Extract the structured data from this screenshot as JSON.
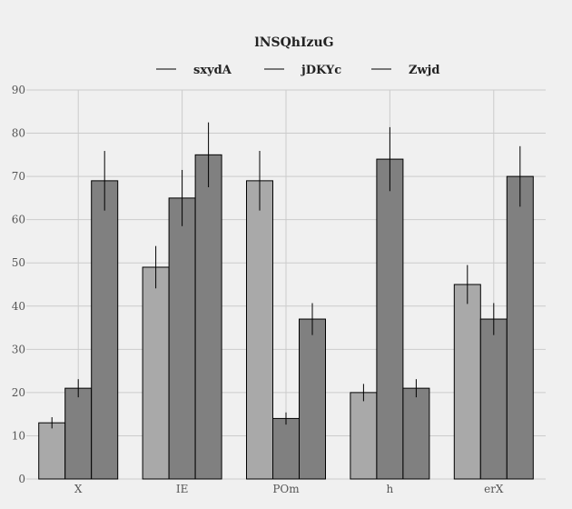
{
  "chart_data": {
    "type": "bar",
    "title": "lNSQhIzuG",
    "xlabel": "",
    "ylabel": "",
    "categories": [
      "X",
      "IE",
      "POm",
      "h",
      "erX"
    ],
    "ylim": [
      0,
      90
    ],
    "yticks": [
      0,
      10,
      20,
      30,
      40,
      50,
      60,
      70,
      80,
      90
    ],
    "grid": true,
    "legend": "top-center",
    "series": [
      {
        "name": "sxydA",
        "color": "#a9a9a9",
        "values": [
          13,
          49,
          69,
          20,
          45
        ],
        "errors": [
          1.3,
          4.9,
          6.9,
          2.0,
          4.5
        ]
      },
      {
        "name": "jDKYc",
        "color": "#808080",
        "values": [
          21,
          65,
          14,
          74,
          37
        ],
        "errors": [
          2.1,
          6.5,
          1.4,
          7.4,
          3.7
        ]
      },
      {
        "name": "Zwjd",
        "color": "#808080",
        "values": [
          69,
          75,
          37,
          21,
          70
        ],
        "errors": [
          6.9,
          7.5,
          3.7,
          2.1,
          7.0
        ]
      }
    ]
  }
}
